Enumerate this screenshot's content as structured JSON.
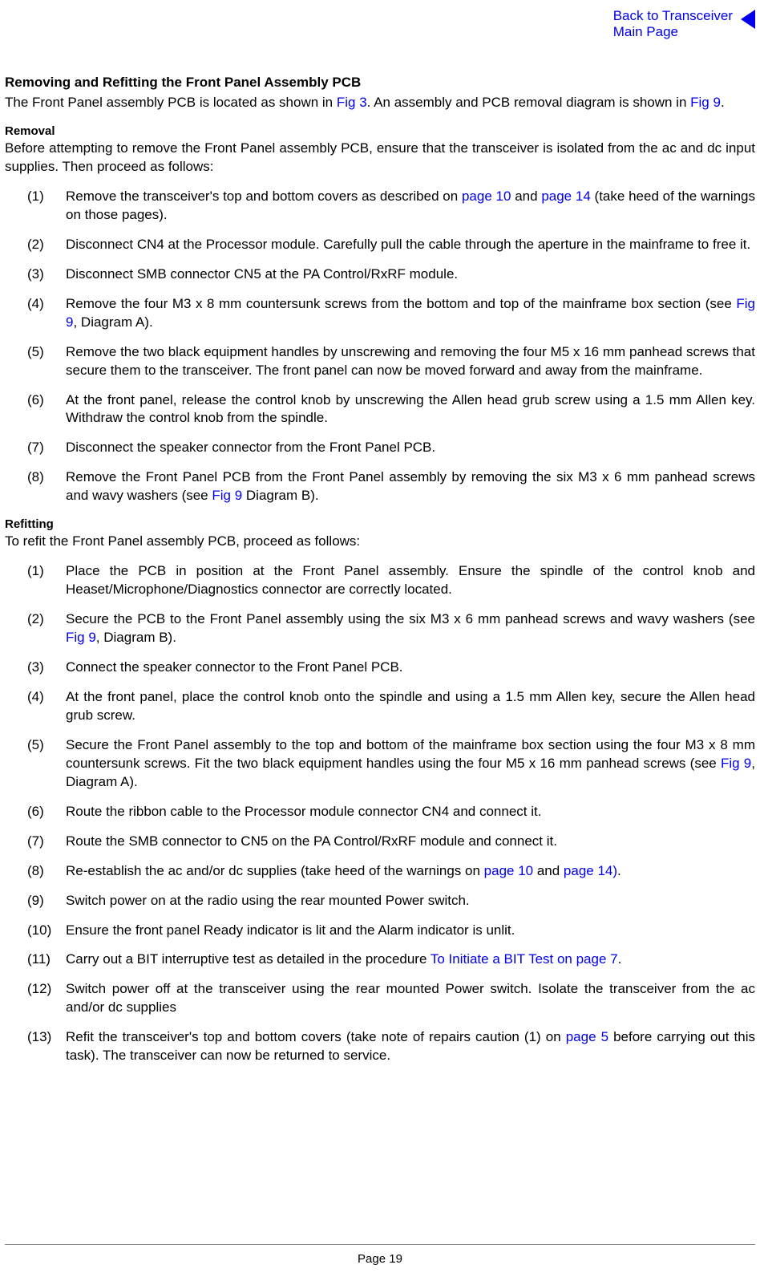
{
  "nav": {
    "back_line1": "Back to Transceiver",
    "back_line2": "Main Page"
  },
  "title": "Removing and Refitting the Front Panel Assembly PCB",
  "intro": {
    "before_link1": "The Front Panel assembly PCB is located as shown in ",
    "link1": "Fig 3",
    "between": ". An assembly and PCB removal diagram is shown in ",
    "link2": "Fig 9",
    "after": "."
  },
  "removal": {
    "heading": "Removal",
    "intro": "Before attempting to remove the Front Panel assembly PCB, ensure that the transceiver is isolated from the ac and dc input supplies. Then proceed as follows:",
    "steps": [
      {
        "num": "(1)",
        "parts": [
          {
            "t": "Remove the transceiver's top and bottom covers as described on "
          },
          {
            "t": "page 10",
            "link": true
          },
          {
            "t": " and "
          },
          {
            "t": "page 14",
            "link": true
          },
          {
            "t": " (take heed of the warnings on those pages)."
          }
        ]
      },
      {
        "num": "(2)",
        "parts": [
          {
            "t": "Disconnect CN4 at the Processor module. Carefully pull the cable through the aperture in the mainframe to free it."
          }
        ]
      },
      {
        "num": "(3)",
        "parts": [
          {
            "t": "Disconnect SMB connector CN5 at the PA Control/RxRF module."
          }
        ]
      },
      {
        "num": "(4)",
        "parts": [
          {
            "t": "Remove the four M3 x 8 mm countersunk screws from the bottom and top of the mainframe box section (see "
          },
          {
            "t": "Fig 9",
            "link": true
          },
          {
            "t": ", Diagram A)."
          }
        ]
      },
      {
        "num": "(5)",
        "parts": [
          {
            "t": "Remove the two black equipment handles by unscrewing and removing the four M5 x 16 mm panhead screws that secure them to the transceiver. The front panel can now be moved forward and away from the mainframe."
          }
        ]
      },
      {
        "num": "(6)",
        "parts": [
          {
            "t": "At the front panel, release the control knob by unscrewing the Allen head grub screw using a 1.5 mm Allen key. Withdraw the control knob from the spindle."
          }
        ]
      },
      {
        "num": "(7)",
        "parts": [
          {
            "t": "Disconnect the speaker connector from the Front Panel PCB."
          }
        ]
      },
      {
        "num": "(8)",
        "parts": [
          {
            "t": "Remove the Front Panel PCB from the Front Panel assembly by removing the six M3 x 6 mm panhead screws and wavy washers (see "
          },
          {
            "t": "Fig 9",
            "link": true
          },
          {
            "t": " Diagram B)."
          }
        ]
      }
    ]
  },
  "refitting": {
    "heading": "Refitting",
    "intro": "To refit the Front Panel assembly PCB, proceed as follows:",
    "steps": [
      {
        "num": "(1)",
        "parts": [
          {
            "t": "Place the PCB in position at the Front Panel assembly. Ensure the spindle of the control knob and Heaset/Microphone/Diagnostics connector are correctly located."
          }
        ]
      },
      {
        "num": "(2)",
        "parts": [
          {
            "t": "Secure the PCB to the Front Panel assembly using the six M3 x 6 mm panhead screws and wavy washers (see "
          },
          {
            "t": "Fig 9",
            "link": true
          },
          {
            "t": ", Diagram B)."
          }
        ]
      },
      {
        "num": "(3)",
        "parts": [
          {
            "t": "Connect the speaker connector to the Front Panel PCB."
          }
        ]
      },
      {
        "num": "(4)",
        "parts": [
          {
            "t": "At the front panel, place the control knob onto the spindle and using a 1.5 mm Allen key, secure the Allen head grub screw."
          }
        ]
      },
      {
        "num": "(5)",
        "parts": [
          {
            "t": "Secure the Front Panel assembly to the top and bottom of the mainframe box section using the four M3 x 8 mm countersunk screws. Fit the two black equipment handles using the four M5 x 16 mm panhead screws (see "
          },
          {
            "t": "Fig 9",
            "link": true
          },
          {
            "t": ", Diagram A)."
          }
        ]
      },
      {
        "num": "(6)",
        "parts": [
          {
            "t": "Route the ribbon cable to the Processor module connector CN4 and connect it."
          }
        ]
      },
      {
        "num": "(7)",
        "parts": [
          {
            "t": "Route the SMB connector to CN5 on the PA Control/RxRF module and connect it."
          }
        ]
      },
      {
        "num": "(8)",
        "parts": [
          {
            "t": "Re-establish the ac and/or dc supplies (take heed of the warnings on "
          },
          {
            "t": "page 10",
            "link": true
          },
          {
            "t": " and "
          },
          {
            "t": "page 14)",
            "link": true
          },
          {
            "t": "."
          }
        ]
      },
      {
        "num": "(9)",
        "parts": [
          {
            "t": "Switch power on at the radio using the rear mounted Power switch."
          }
        ]
      },
      {
        "num": "(10)",
        "parts": [
          {
            "t": "Ensure the front panel Ready indicator is lit and the Alarm indicator is unlit."
          }
        ]
      },
      {
        "num": "(11)",
        "parts": [
          {
            "t": "Carry out a BIT interruptive test as detailed in the procedure "
          },
          {
            "t": "To Initiate a BIT Test on page 7",
            "link": true
          },
          {
            "t": "."
          }
        ]
      },
      {
        "num": "(12)",
        "parts": [
          {
            "t": "Switch power off at the transceiver using the rear mounted Power switch. Isolate the transceiver from the ac and/or dc supplies"
          }
        ]
      },
      {
        "num": "(13)",
        "parts": [
          {
            "t": "Refit the transceiver's top and bottom covers (take note of repairs caution (1) on "
          },
          {
            "t": "page 5",
            "link": true
          },
          {
            "t": " before carrying out this task). The transceiver can now be returned to service."
          }
        ]
      }
    ]
  },
  "footer": {
    "page": "Page 19"
  },
  "colors": {
    "link": "#0000ee",
    "text": "#000000",
    "background": "#ffffff",
    "hr": "#888888"
  }
}
